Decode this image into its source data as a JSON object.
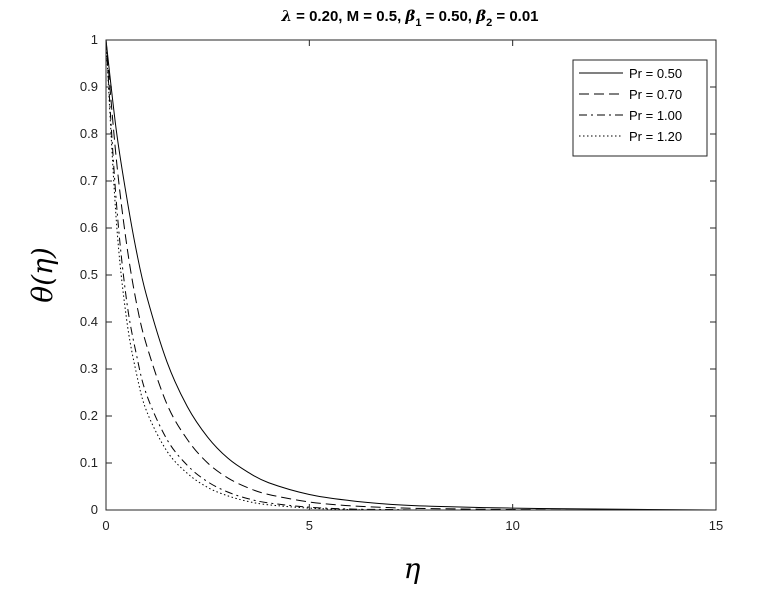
{
  "chart_data": {
    "type": "line",
    "title_parts": {
      "lambda_sym": "λ",
      "lambda_val": " = 0.20, M = 0.5, ",
      "beta_sym": "β",
      "sub1": "1",
      "beta1_val": " = 0.50, ",
      "sub2": "2",
      "beta2_val": " = 0.01"
    },
    "xlabel": "η",
    "ylabel": "θ(η)",
    "xlim": [
      0,
      15
    ],
    "ylim": [
      0,
      1
    ],
    "xticks": [
      "0",
      "5",
      "10",
      "15"
    ],
    "yticks": [
      "0",
      "0.1",
      "0.2",
      "0.3",
      "0.4",
      "0.5",
      "0.6",
      "0.7",
      "0.8",
      "0.9",
      "1"
    ],
    "grid": false,
    "legend_position": "top-right",
    "line_color": "#000000",
    "series": [
      {
        "name": "Pr = 0.50",
        "style": "solid",
        "x": [
          0,
          0.25,
          0.5,
          0.75,
          1,
          1.5,
          2,
          2.5,
          3,
          3.5,
          4,
          5,
          6,
          7,
          8,
          10,
          12,
          15
        ],
        "y": [
          1,
          0.81,
          0.67,
          0.55,
          0.455,
          0.315,
          0.22,
          0.155,
          0.11,
          0.08,
          0.058,
          0.033,
          0.02,
          0.012,
          0.008,
          0.004,
          0.002,
          0.0
        ]
      },
      {
        "name": "Pr = 0.70",
        "style": "dashed",
        "x": [
          0,
          0.25,
          0.5,
          0.75,
          1,
          1.5,
          2,
          2.5,
          3,
          3.5,
          4,
          5,
          6,
          7,
          8,
          10,
          12,
          15
        ],
        "y": [
          1,
          0.75,
          0.57,
          0.44,
          0.35,
          0.225,
          0.15,
          0.1,
          0.068,
          0.047,
          0.033,
          0.017,
          0.009,
          0.005,
          0.003,
          0.001,
          0.0,
          0.0
        ]
      },
      {
        "name": "Pr = 1.00",
        "style": "dashdot",
        "x": [
          0,
          0.25,
          0.5,
          0.75,
          1,
          1.5,
          2,
          2.5,
          3,
          3.5,
          4,
          5,
          6,
          7,
          8,
          10,
          12,
          15
        ],
        "y": [
          1,
          0.66,
          0.45,
          0.33,
          0.245,
          0.15,
          0.095,
          0.06,
          0.038,
          0.024,
          0.015,
          0.006,
          0.002,
          0.001,
          0.0,
          0.0,
          0.0,
          0.0
        ]
      },
      {
        "name": "Pr = 1.20",
        "style": "dotted",
        "x": [
          0,
          0.25,
          0.5,
          0.75,
          1,
          1.5,
          2,
          2.5,
          3,
          3.5,
          4,
          5,
          6,
          7,
          8,
          10,
          12,
          15
        ],
        "y": [
          1,
          0.62,
          0.41,
          0.29,
          0.21,
          0.125,
          0.078,
          0.048,
          0.03,
          0.018,
          0.011,
          0.004,
          0.001,
          0.0,
          0.0,
          0.0,
          0.0,
          0.0
        ]
      }
    ]
  }
}
